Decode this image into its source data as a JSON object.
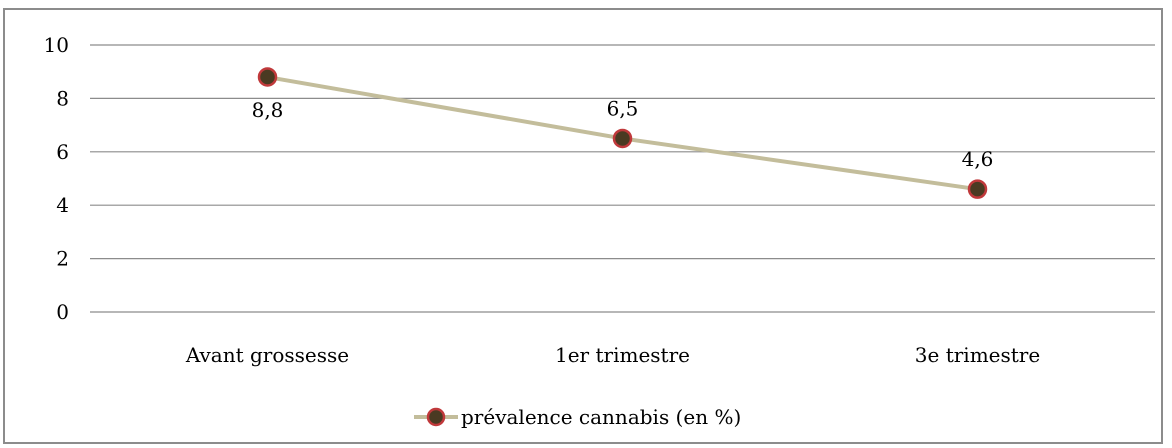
{
  "chart_data": {
    "type": "line",
    "categories": [
      "Avant grossesse",
      "1er trimestre",
      "3e trimestre"
    ],
    "series": [
      {
        "name": "prévalence cannabis (en %)",
        "values": [
          8.8,
          6.5,
          4.6
        ],
        "data_labels": [
          "8,8",
          "6,5",
          "4,6"
        ]
      }
    ],
    "ylim": [
      0,
      10
    ],
    "yticks": [
      0,
      2,
      4,
      6,
      8,
      10
    ],
    "ytick_labels": [
      "0",
      "2",
      "4",
      "6",
      "8",
      "10"
    ],
    "grid": true,
    "legend_position": "bottom",
    "colors": {
      "line": "#c3bd9b",
      "marker_fill": "#4a3a22",
      "marker_edge": "#c0393b",
      "grid": "#8c8c8c",
      "frame": "#8c8c8c"
    }
  }
}
